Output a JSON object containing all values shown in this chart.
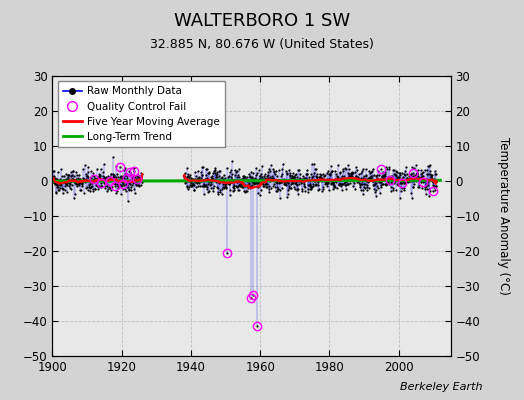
{
  "title": "WALTERBORO 1 SW",
  "subtitle": "32.885 N, 80.676 W (United States)",
  "ylabel": "Temperature Anomaly (°C)",
  "credit": "Berkeley Earth",
  "xlim": [
    1900,
    2015
  ],
  "ylim": [
    -50,
    30
  ],
  "yticks": [
    -50,
    -40,
    -30,
    -20,
    -10,
    0,
    10,
    20,
    30
  ],
  "xticks": [
    1900,
    1920,
    1940,
    1960,
    1980,
    2000
  ],
  "bg_color": "#d3d3d3",
  "plot_bg_color": "#e8e8e8",
  "grid_color": "#c0c0c0",
  "raw_line_color": "#0000ff",
  "raw_dot_color": "#000000",
  "qc_fail_color": "#ff00ff",
  "moving_avg_color": "#ff0000",
  "trend_color": "#00aa00",
  "seed": 42,
  "anomaly_outliers": [
    {
      "year": 1950.5,
      "value": -20.5
    },
    {
      "year": 1957.3,
      "value": -33.5
    },
    {
      "year": 1957.8,
      "value": -32.5
    },
    {
      "year": 1959.2,
      "value": -41.5
    }
  ],
  "qc_fail_years_early": [
    1912.0,
    1914.0,
    1916.5,
    1918.0,
    1919.5,
    1920.5,
    1921.5,
    1922.5,
    1923.5,
    1924.5
  ],
  "qc_fail_years_late": [
    1995.0,
    1997.5,
    2001.0,
    2004.0,
    2007.0,
    2010.0
  ]
}
